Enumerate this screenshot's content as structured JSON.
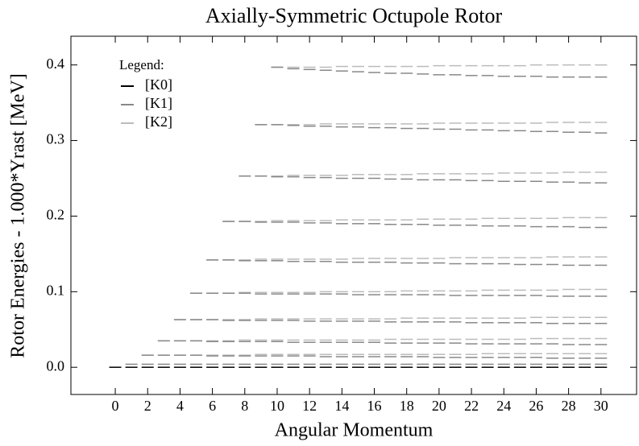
{
  "chart_data": {
    "type": "levels",
    "title": "Axially-Symmetric Octupole Rotor",
    "x_label": "Angular Momentum",
    "y_label": "Rotor Energies - 1.000*Yrast [MeV]",
    "legend_title": "Legend:",
    "legend": "upper left",
    "x": [
      0,
      1,
      2,
      3,
      4,
      5,
      6,
      7,
      8,
      9,
      10,
      11,
      12,
      13,
      14,
      15,
      16,
      17,
      18,
      19,
      20,
      21,
      22,
      23,
      24,
      25,
      26,
      27,
      28,
      29,
      30
    ],
    "xlim": [
      -2.74,
      32.2
    ],
    "xticks": [
      0,
      2,
      4,
      6,
      8,
      10,
      12,
      14,
      16,
      18,
      20,
      22,
      24,
      26,
      28,
      30
    ],
    "ylim": [
      -0.036,
      0.438
    ],
    "yticks": [
      {
        "value": 0,
        "label": "0.0"
      },
      0.1,
      0.2,
      0.3,
      0.4
    ],
    "series": [
      {
        "name": "[K0]",
        "color": "#000000",
        "values": [
          [
            0,
            0,
            0,
            0,
            0,
            0,
            0,
            0,
            0,
            0,
            0,
            0,
            0,
            0,
            0,
            0,
            0,
            0,
            0,
            0,
            0,
            0,
            0,
            0,
            0,
            0,
            0,
            0,
            0,
            0,
            0
          ]
        ]
      },
      {
        "name": "[K1]",
        "color": "#888888",
        "values": [
          [
            null,
            0.004,
            0.004,
            0.004,
            0.004,
            0.004,
            0.004,
            0.004,
            0.004,
            0.004,
            0.004,
            0.004,
            0.004,
            0.004,
            0.004,
            0.004,
            0.004,
            0.004,
            0.004,
            0.004,
            0.004,
            0.004,
            0.004,
            0.004,
            0.004,
            0.004,
            0.004,
            0.004,
            0.004,
            0.004,
            0.004
          ],
          [
            null,
            null,
            0.016,
            0.016,
            0.016,
            0.016,
            0.015,
            0.015,
            0.015,
            0.015,
            0.015,
            0.015,
            0.015,
            0.014,
            0.014,
            0.014,
            0.014,
            0.014,
            0.014,
            0.014,
            0.013,
            0.013,
            0.013,
            0.013,
            0.013,
            0.013,
            0.013,
            0.012,
            0.012,
            0.012,
            0.012
          ],
          [
            null,
            null,
            null,
            0.035,
            0.035,
            0.035,
            0.034,
            0.034,
            0.034,
            0.034,
            0.034,
            0.033,
            0.033,
            0.033,
            0.033,
            0.033,
            0.033,
            0.032,
            0.032,
            0.032,
            0.032,
            0.032,
            0.031,
            0.031,
            0.031,
            0.031,
            0.031,
            0.031,
            0.03,
            0.03,
            0.03
          ],
          [
            null,
            null,
            null,
            null,
            0.063,
            0.063,
            0.063,
            0.062,
            0.062,
            0.062,
            0.062,
            0.062,
            0.061,
            0.061,
            0.061,
            0.061,
            0.061,
            0.06,
            0.06,
            0.06,
            0.06,
            0.06,
            0.059,
            0.059,
            0.059,
            0.059,
            0.059,
            0.058,
            0.058,
            0.058,
            0.058
          ],
          [
            null,
            null,
            null,
            null,
            null,
            0.098,
            0.098,
            0.098,
            0.098,
            0.097,
            0.097,
            0.097,
            0.097,
            0.097,
            0.097,
            0.096,
            0.096,
            0.096,
            0.096,
            0.096,
            0.096,
            0.095,
            0.095,
            0.095,
            0.095,
            0.095,
            0.095,
            0.094,
            0.094,
            0.094,
            0.094
          ],
          [
            null,
            null,
            null,
            null,
            null,
            null,
            0.142,
            0.142,
            0.141,
            0.141,
            0.141,
            0.14,
            0.14,
            0.14,
            0.139,
            0.139,
            0.139,
            0.139,
            0.138,
            0.138,
            0.138,
            0.137,
            0.137,
            0.137,
            0.137,
            0.136,
            0.136,
            0.136,
            0.135,
            0.135,
            0.135
          ],
          [
            null,
            null,
            null,
            null,
            null,
            null,
            null,
            0.193,
            0.193,
            0.192,
            0.192,
            0.192,
            0.191,
            0.191,
            0.19,
            0.19,
            0.19,
            0.189,
            0.189,
            0.189,
            0.188,
            0.188,
            0.188,
            0.187,
            0.187,
            0.187,
            0.186,
            0.186,
            0.186,
            0.185,
            0.185
          ],
          [
            null,
            null,
            null,
            null,
            null,
            null,
            null,
            null,
            0.253,
            0.253,
            0.252,
            0.252,
            0.251,
            0.251,
            0.25,
            0.25,
            0.25,
            0.249,
            0.249,
            0.248,
            0.248,
            0.248,
            0.247,
            0.247,
            0.246,
            0.246,
            0.246,
            0.245,
            0.245,
            0.244,
            0.244
          ],
          [
            null,
            null,
            null,
            null,
            null,
            null,
            null,
            null,
            null,
            0.321,
            0.321,
            0.32,
            0.319,
            0.319,
            0.318,
            0.318,
            0.317,
            0.317,
            0.316,
            0.316,
            0.315,
            0.315,
            0.314,
            0.314,
            0.313,
            0.313,
            0.312,
            0.312,
            0.311,
            0.311,
            0.31
          ],
          [
            null,
            null,
            null,
            null,
            null,
            null,
            null,
            null,
            null,
            null,
            0.397,
            0.395,
            0.394,
            0.393,
            0.392,
            0.391,
            0.39,
            0.389,
            0.389,
            0.388,
            0.387,
            0.387,
            0.386,
            0.386,
            0.385,
            0.385,
            0.385,
            0.384,
            0.384,
            0.384,
            0.384
          ]
        ]
      },
      {
        "name": "[K2]",
        "color": "#bbbbbb",
        "values": [
          [
            null,
            null,
            0.016,
            0.016,
            0.016,
            0.016,
            0.016,
            0.016,
            0.016,
            0.017,
            0.017,
            0.017,
            0.017,
            0.017,
            0.017,
            0.017,
            0.017,
            0.017,
            0.017,
            0.017,
            0.017,
            0.017,
            0.017,
            0.018,
            0.018,
            0.018,
            0.018,
            0.018,
            0.018,
            0.018,
            0.018
          ],
          [
            null,
            null,
            null,
            0.035,
            0.035,
            0.035,
            0.035,
            0.035,
            0.036,
            0.036,
            0.036,
            0.036,
            0.036,
            0.036,
            0.036,
            0.036,
            0.036,
            0.037,
            0.037,
            0.037,
            0.037,
            0.037,
            0.037,
            0.037,
            0.037,
            0.037,
            0.038,
            0.038,
            0.038,
            0.038,
            0.038
          ],
          [
            null,
            null,
            null,
            null,
            0.063,
            0.063,
            0.063,
            0.063,
            0.063,
            0.064,
            0.064,
            0.064,
            0.064,
            0.064,
            0.064,
            0.064,
            0.064,
            0.064,
            0.065,
            0.065,
            0.065,
            0.065,
            0.065,
            0.065,
            0.065,
            0.065,
            0.066,
            0.066,
            0.066,
            0.066,
            0.066
          ],
          [
            null,
            null,
            null,
            null,
            null,
            0.098,
            0.098,
            0.098,
            0.099,
            0.099,
            0.099,
            0.099,
            0.099,
            0.1,
            0.1,
            0.1,
            0.1,
            0.1,
            0.101,
            0.101,
            0.101,
            0.101,
            0.101,
            0.102,
            0.102,
            0.102,
            0.102,
            0.102,
            0.103,
            0.103,
            0.103
          ],
          [
            null,
            null,
            null,
            null,
            null,
            null,
            0.142,
            0.142,
            0.142,
            0.143,
            0.143,
            0.143,
            0.143,
            0.143,
            0.143,
            0.144,
            0.144,
            0.144,
            0.144,
            0.144,
            0.144,
            0.145,
            0.145,
            0.145,
            0.145,
            0.145,
            0.145,
            0.146,
            0.146,
            0.146,
            0.146
          ],
          [
            null,
            null,
            null,
            null,
            null,
            null,
            null,
            0.193,
            0.193,
            0.193,
            0.194,
            0.194,
            0.194,
            0.194,
            0.195,
            0.195,
            0.195,
            0.195,
            0.195,
            0.196,
            0.196,
            0.196,
            0.196,
            0.197,
            0.197,
            0.197,
            0.197,
            0.197,
            0.198,
            0.198,
            0.198
          ],
          [
            null,
            null,
            null,
            null,
            null,
            null,
            null,
            null,
            0.253,
            0.253,
            0.253,
            0.254,
            0.254,
            0.254,
            0.254,
            0.255,
            0.255,
            0.255,
            0.255,
            0.256,
            0.256,
            0.256,
            0.256,
            0.256,
            0.257,
            0.257,
            0.257,
            0.257,
            0.258,
            0.258,
            0.258
          ],
          [
            null,
            null,
            null,
            null,
            null,
            null,
            null,
            null,
            null,
            0.321,
            0.321,
            0.321,
            0.321,
            0.322,
            0.322,
            0.322,
            0.322,
            0.322,
            0.322,
            0.322,
            0.323,
            0.323,
            0.323,
            0.323,
            0.323,
            0.323,
            0.323,
            0.324,
            0.324,
            0.324,
            0.324
          ],
          [
            null,
            null,
            null,
            null,
            null,
            null,
            null,
            null,
            null,
            null,
            0.397,
            0.397,
            0.397,
            0.397,
            0.398,
            0.398,
            0.398,
            0.398,
            0.398,
            0.398,
            0.399,
            0.399,
            0.399,
            0.399,
            0.399,
            0.399,
            0.4,
            0.4,
            0.4,
            0.4,
            0.4
          ]
        ]
      }
    ]
  }
}
